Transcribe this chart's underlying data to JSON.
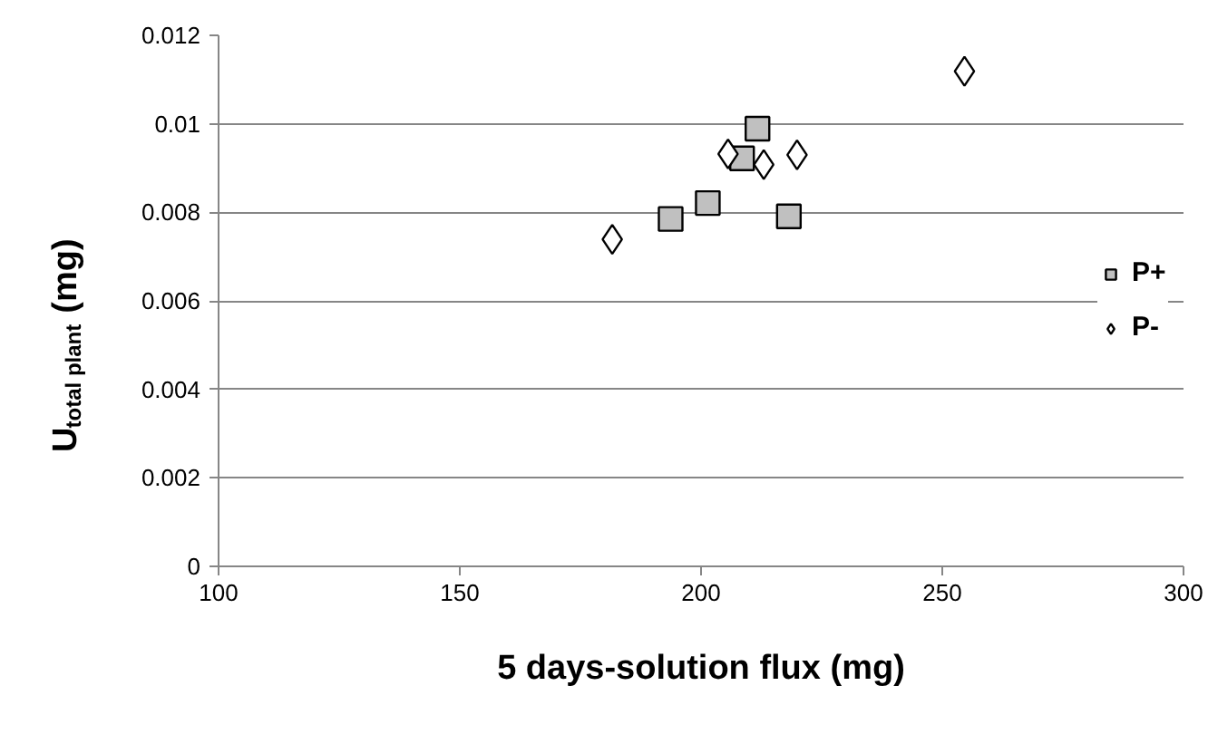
{
  "chart_data": {
    "type": "scatter",
    "xlabel": "5 days-solution flux (mg)",
    "ylabel": "U$_{total plant}$ (mg)",
    "xlim": [
      100,
      300
    ],
    "xticks": [
      100,
      150,
      200,
      250,
      300
    ],
    "ylim": [
      0,
      0.012
    ],
    "yticks": [
      0,
      0.002,
      0.004,
      0.006,
      0.008,
      {
        "value": 0.01,
        "label": "0.01"
      },
      0.012
    ],
    "grid": "y",
    "legend": "right",
    "series": [
      {
        "name": "P+",
        "color": "#c0c0c0",
        "marker": "square",
        "x": [
          193.7,
          201.4,
          211.7,
          208.5,
          218.2
        ],
        "values": [
          0.00785,
          0.00821,
          0.00989,
          0.00922,
          0.00791
        ]
      },
      {
        "name": "P-",
        "color": "#ffffff",
        "marker": "diamond",
        "x": [
          181.6,
          205.6,
          213,
          219.9,
          254.6
        ],
        "values": [
          0.00739,
          0.00932,
          0.00908,
          0.0093,
          0.01119
        ]
      }
    ]
  }
}
